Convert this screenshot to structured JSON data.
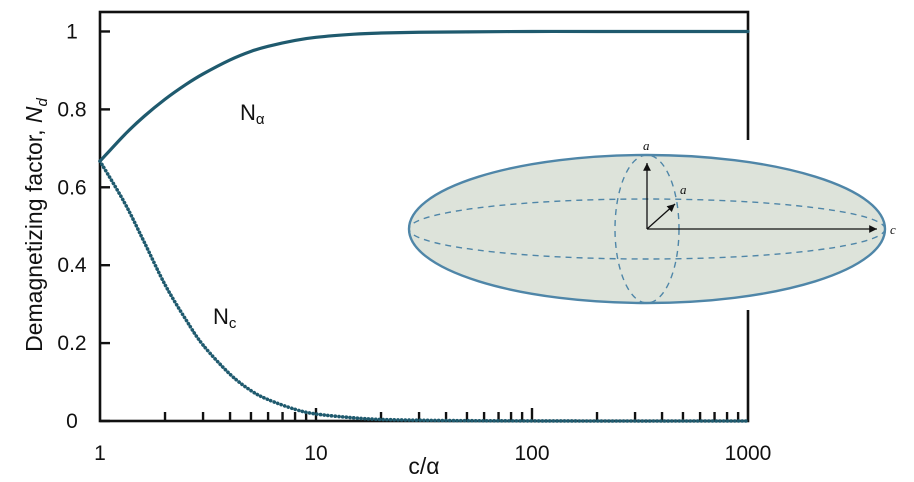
{
  "chart_data": {
    "type": "line",
    "title": "",
    "xlabel": "c/α",
    "ylabel": "Demagnetizing factor, ",
    "ylabel_symbol": "N",
    "ylabel_subscript": "d",
    "x_scale": "log",
    "xlim": [
      1,
      1000
    ],
    "ylim": [
      0,
      1.05
    ],
    "x_ticks": [
      1,
      10,
      100,
      1000
    ],
    "x_tick_labels": [
      "1",
      "10",
      "100",
      "1000"
    ],
    "y_ticks": [
      0,
      0.2,
      0.4,
      0.6,
      0.8,
      1
    ],
    "y_tick_labels": [
      "0",
      "0.2",
      "0.4",
      "0.6",
      "0.8",
      "1"
    ],
    "grid": false,
    "series": [
      {
        "name": "Nα",
        "name_main": "N",
        "name_sub": "α",
        "style": "solid",
        "color": "#1f5a6e",
        "x": [
          1,
          1.3,
          1.6,
          2,
          2.5,
          3,
          4,
          5,
          6,
          8,
          10,
          15,
          20,
          30,
          50,
          100,
          200,
          500,
          1000
        ],
        "y": [
          0.667,
          0.735,
          0.782,
          0.826,
          0.864,
          0.891,
          0.927,
          0.949,
          0.962,
          0.977,
          0.985,
          0.993,
          0.996,
          0.998,
          0.999,
          1.0,
          1.0,
          1.0,
          1.0
        ]
      },
      {
        "name": "Nc",
        "name_main": "N",
        "name_sub": "c",
        "style": "dotted",
        "color": "#1f5a6e",
        "x": [
          1,
          1.3,
          1.6,
          2,
          2.5,
          3,
          4,
          5,
          6,
          8,
          10,
          15,
          20,
          30,
          50,
          100,
          200,
          500,
          1000
        ],
        "y": [
          0.667,
          0.56,
          0.46,
          0.35,
          0.26,
          0.195,
          0.12,
          0.078,
          0.055,
          0.03,
          0.018,
          0.008,
          0.004,
          0.002,
          0.0008,
          0.0002,
          0.0,
          0.0,
          0.0
        ]
      }
    ],
    "inset": {
      "shape": "prolate spheroid",
      "fill_color": "#dde3da",
      "stroke_color": "#4f86a8",
      "axis_labels": [
        "a",
        "a",
        "c"
      ]
    }
  }
}
